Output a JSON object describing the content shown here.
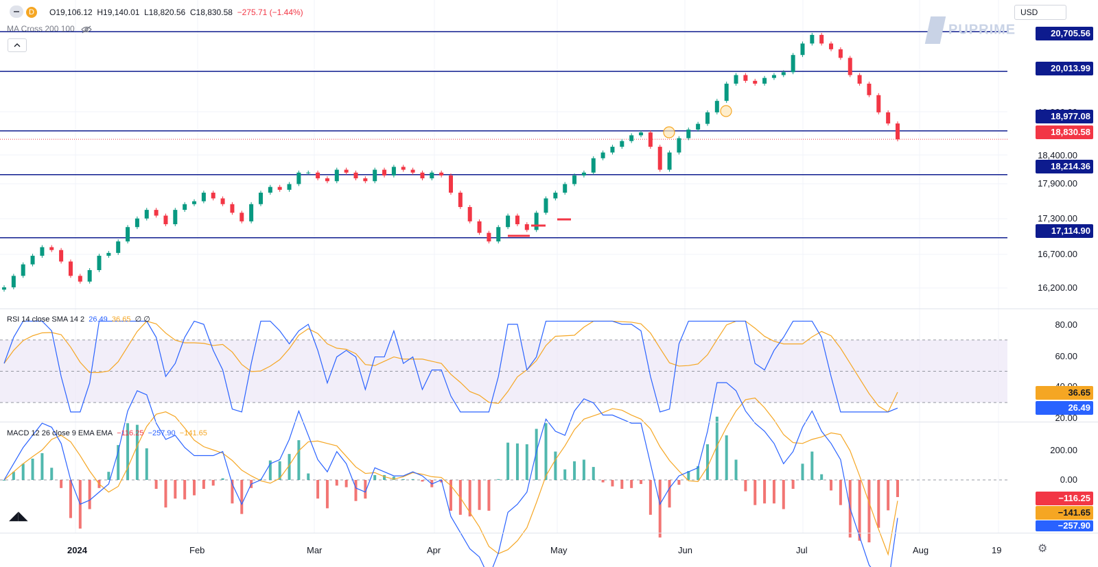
{
  "header": {
    "interval": "D",
    "open": "O19,106.12",
    "high": "H19,140.01",
    "low": "L18,820.56",
    "close": "C18,830.58",
    "change": "−275.71 (−1.44%)",
    "ma_label": "MA Cross 200 100",
    "currency": "USD",
    "brand": "PUPRIME"
  },
  "price_axis": {
    "ticks": [
      "19,900.00",
      "18,400.00",
      "17,900.00",
      "17,300.00",
      "16,700.00",
      "16,200.00"
    ],
    "levels": [
      {
        "label": "20,705.56",
        "value": 20705.56
      },
      {
        "label": "20,013.99",
        "value": 20013.99
      },
      {
        "label": "18,977.08",
        "value": 18977.08
      },
      {
        "label": "18,214.36",
        "value": 18214.36
      },
      {
        "label": "17,114.90",
        "value": 17114.9
      }
    ],
    "last_price": {
      "label": "18,830.58",
      "value": 18830.58
    }
  },
  "rsi": {
    "label": "RSI 14 close SMA 14 2",
    "value_rsi": "26.49",
    "value_sma": "36.65",
    "flags": "∅ ∅",
    "ticks": [
      "80.00",
      "60.00",
      "40.00",
      "20.00"
    ],
    "tag_rsi": "26.49",
    "tag_sma": "36.65"
  },
  "macd": {
    "label": "MACD 12 26 close 9 EMA EMA",
    "value_hist": "−116.25",
    "value_macd": "−257.90",
    "value_signal": "−141.65",
    "ticks": [
      "200.00",
      "0.00"
    ],
    "tag_hist": "−116.25",
    "tag_signal": "−141.65",
    "tag_macd": "−257.90"
  },
  "time_axis": [
    "2024",
    "Feb",
    "Mar",
    "Apr",
    "May",
    "Jun",
    "Jul",
    "Aug",
    "19"
  ],
  "colors": {
    "up": "#089981",
    "down": "#f23645",
    "level_line": "#0d1b8e",
    "rsi_line": "#2962ff",
    "rsi_sma": "#f5a623",
    "macd_line": "#2962ff",
    "signal_line": "#f5a623",
    "rsi_band": "#ede7f6"
  },
  "chart_data": {
    "type": "candlestick",
    "x_start": "2023-12-11",
    "x_end": "2024-07-26",
    "ylim": [
      16000,
      20900
    ],
    "series": [
      {
        "name": "close_path",
        "values": [
          16250,
          16450,
          16650,
          16800,
          16950,
          16900,
          16700,
          16450,
          16350,
          16550,
          16800,
          16850,
          17050,
          17300,
          17450,
          17600,
          17500,
          17350,
          17600,
          17700,
          17750,
          17900,
          17800,
          17700,
          17550,
          17400,
          17700,
          17900,
          18000,
          17950,
          18050,
          18250,
          18250,
          18150,
          18100,
          18300,
          18250,
          18150,
          18100,
          18300,
          18200,
          18350,
          18300,
          18250,
          18150,
          18250,
          18200,
          17900,
          17650,
          17400,
          17200,
          17050,
          17300,
          17500,
          17350,
          17250,
          17550,
          17800,
          17900,
          18050,
          18200,
          18250,
          18500,
          18600,
          18700,
          18800,
          18900,
          18950,
          18700,
          18300,
          18600,
          18850,
          19000,
          19100,
          19300,
          19500,
          19800,
          19950,
          19850,
          19800,
          19900,
          19950,
          20000,
          20300,
          20500,
          20650,
          20500,
          20400,
          20250,
          19950,
          19800,
          19600,
          19300,
          19106,
          18830
        ]
      }
    ]
  }
}
